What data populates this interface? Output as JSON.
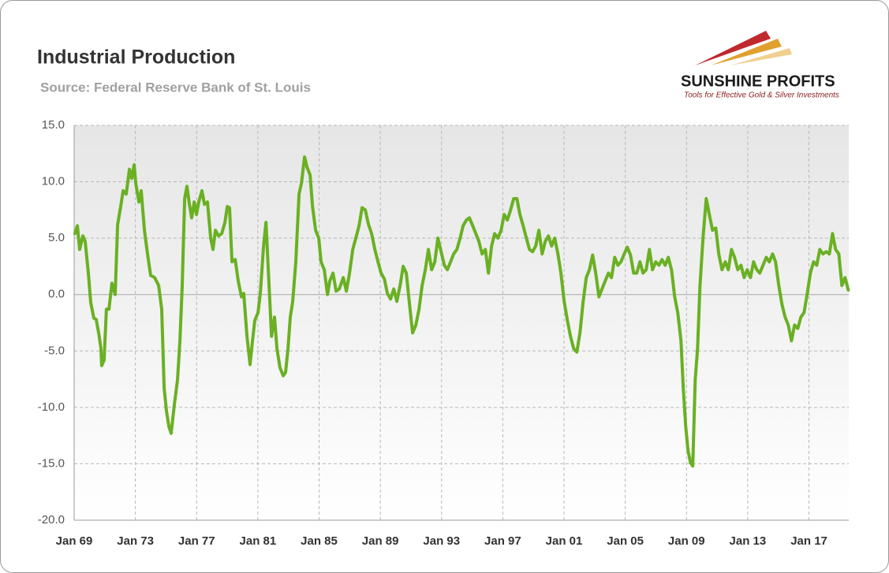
{
  "chart_data": {
    "type": "line",
    "title": "Industrial Production",
    "subtitle": "Source: Federal Reserve Bank of St. Louis",
    "color": "#6ab023",
    "grid": true,
    "xlim": [
      1969,
      2019.6
    ],
    "ylim": [
      -20,
      15
    ],
    "xticks": [
      {
        "value": 1969,
        "label": "Jan 69"
      },
      {
        "value": 1973,
        "label": "Jan 73"
      },
      {
        "value": 1977,
        "label": "Jan 77"
      },
      {
        "value": 1981,
        "label": "Jan 81"
      },
      {
        "value": 1985,
        "label": "Jan 85"
      },
      {
        "value": 1989,
        "label": "Jan 89"
      },
      {
        "value": 1993,
        "label": "Jan 93"
      },
      {
        "value": 1997,
        "label": "Jan 97"
      },
      {
        "value": 2001,
        "label": "Jan 01"
      },
      {
        "value": 2005,
        "label": "Jan 05"
      },
      {
        "value": 2009,
        "label": "Jan 09"
      },
      {
        "value": 2013,
        "label": "Jan 13"
      },
      {
        "value": 2017,
        "label": "Jan 17"
      }
    ],
    "yticks": [
      {
        "value": 15,
        "label": "15.0"
      },
      {
        "value": 10,
        "label": "10.0"
      },
      {
        "value": 5,
        "label": "5.0"
      },
      {
        "value": 0,
        "label": "0.0"
      },
      {
        "value": -5,
        "label": "-5.0"
      },
      {
        "value": -10,
        "label": "-10.0"
      },
      {
        "value": -15,
        "label": "-15.0"
      },
      {
        "value": -20,
        "label": "-20.0"
      }
    ],
    "x": [
      1969.05,
      1969.21,
      1969.36,
      1969.57,
      1969.72,
      1969.93,
      1970.08,
      1970.29,
      1970.44,
      1970.6,
      1970.75,
      1970.8,
      1970.96,
      1971.11,
      1971.27,
      1971.47,
      1971.68,
      1971.84,
      1972.04,
      1972.2,
      1972.4,
      1972.61,
      1972.76,
      1972.92,
      1973.02,
      1973.23,
      1973.38,
      1973.59,
      1973.79,
      1974.0,
      1974.26,
      1974.52,
      1974.72,
      1974.88,
      1975.03,
      1975.19,
      1975.34,
      1975.55,
      1975.75,
      1975.91,
      1976.06,
      1976.22,
      1976.37,
      1976.53,
      1976.68,
      1976.84,
      1976.99,
      1977.14,
      1977.35,
      1977.51,
      1977.71,
      1977.92,
      1978.07,
      1978.23,
      1978.43,
      1978.64,
      1978.85,
      1979.0,
      1979.15,
      1979.31,
      1979.52,
      1979.72,
      1979.93,
      1980.08,
      1980.29,
      1980.49,
      1980.65,
      1980.8,
      1981.01,
      1981.16,
      1981.37,
      1981.53,
      1981.73,
      1981.89,
      1982.09,
      1982.25,
      1982.45,
      1982.66,
      1982.81,
      1982.97,
      1983.12,
      1983.28,
      1983.48,
      1983.69,
      1983.85,
      1984.05,
      1984.21,
      1984.41,
      1984.57,
      1984.77,
      1984.98,
      1985.13,
      1985.34,
      1985.55,
      1985.7,
      1985.91,
      1986.11,
      1986.32,
      1986.58,
      1986.78,
      1986.99,
      1987.2,
      1987.4,
      1987.61,
      1987.81,
      1988.02,
      1988.23,
      1988.43,
      1988.64,
      1988.85,
      1989.05,
      1989.26,
      1989.46,
      1989.67,
      1989.88,
      1990.08,
      1990.29,
      1990.49,
      1990.7,
      1990.91,
      1991.11,
      1991.32,
      1991.53,
      1991.73,
      1991.94,
      1992.14,
      1992.35,
      1992.56,
      1992.76,
      1992.97,
      1993.18,
      1993.38,
      1993.59,
      1993.79,
      1994.0,
      1994.21,
      1994.41,
      1994.62,
      1994.82,
      1995.03,
      1995.24,
      1995.44,
      1995.65,
      1995.86,
      1996.06,
      1996.27,
      1996.47,
      1996.68,
      1996.89,
      1997.09,
      1997.3,
      1997.51,
      1997.71,
      1997.92,
      1998.12,
      1998.33,
      1998.54,
      1998.74,
      1998.95,
      1999.15,
      1999.36,
      1999.57,
      1999.77,
      1999.98,
      2000.19,
      2000.39,
      2000.6,
      2000.8,
      2001.01,
      2001.22,
      2001.42,
      2001.63,
      2001.84,
      2002.04,
      2002.25,
      2002.45,
      2002.66,
      2002.87,
      2003.07,
      2003.28,
      2003.48,
      2003.69,
      2003.9,
      2004.1,
      2004.31,
      2004.52,
      2004.72,
      2004.93,
      2005.13,
      2005.34,
      2005.55,
      2005.75,
      2005.96,
      2006.16,
      2006.37,
      2006.58,
      2006.78,
      2006.99,
      2007.2,
      2007.4,
      2007.61,
      2007.81,
      2008.02,
      2008.23,
      2008.43,
      2008.64,
      2008.79,
      2008.95,
      2009.1,
      2009.26,
      2009.41,
      2009.57,
      2009.72,
      2009.88,
      2010.08,
      2010.29,
      2010.49,
      2010.7,
      2010.91,
      2011.11,
      2011.32,
      2011.53,
      2011.73,
      2011.94,
      2012.14,
      2012.35,
      2012.56,
      2012.76,
      2012.97,
      2013.18,
      2013.38,
      2013.59,
      2013.79,
      2014.0,
      2014.21,
      2014.41,
      2014.62,
      2014.82,
      2015.03,
      2015.24,
      2015.44,
      2015.65,
      2015.86,
      2016.06,
      2016.27,
      2016.47,
      2016.68,
      2016.89,
      2017.09,
      2017.3,
      2017.51,
      2017.71,
      2017.92,
      2018.12,
      2018.33,
      2018.54,
      2018.74,
      2018.95,
      2019.15,
      2019.36,
      2019.57
    ],
    "values": [
      5.4,
      6.1,
      4.0,
      5.2,
      4.7,
      1.9,
      -0.7,
      -2.1,
      -2.2,
      -3.4,
      -4.8,
      -6.3,
      -5.8,
      -1.3,
      -1.3,
      1.0,
      0,
      6.2,
      7.8,
      9.2,
      8.9,
      11.1,
      10.3,
      11.5,
      9.9,
      8.2,
      9.2,
      5.7,
      3.6,
      1.7,
      1.5,
      0.8,
      -1.3,
      -8.3,
      -10.3,
      -11.7,
      -12.3,
      -9.7,
      -7.6,
      -4.1,
      0.8,
      8.5,
      9.6,
      8.0,
      6.8,
      8.2,
      7.1,
      8.2,
      9.2,
      8.0,
      8.2,
      5.0,
      4.0,
      5.7,
      5.2,
      5.4,
      6.4,
      7.8,
      7.7,
      2.9,
      3.1,
      1.2,
      -0.2,
      0.1,
      -3.7,
      -6.2,
      -4.1,
      -2.3,
      -1.6,
      0.1,
      4.3,
      6.4,
      0.8,
      -3.7,
      -2.0,
      -4.8,
      -6.5,
      -7.2,
      -6.9,
      -4.8,
      -2.0,
      -0.6,
      2.9,
      8.9,
      9.9,
      12.2,
      11.3,
      10.6,
      7.8,
      5.7,
      5.0,
      2.9,
      2.2,
      0,
      1.2,
      1.9,
      0.3,
      0.5,
      1.5,
      0.3,
      1.9,
      4.0,
      5.0,
      6.1,
      7.7,
      7.5,
      6.2,
      5.4,
      4.0,
      2.9,
      1.9,
      1.4,
      0.1,
      -0.4,
      0.5,
      -0.6,
      0.8,
      2.5,
      1.9,
      -0.9,
      -3.4,
      -2.7,
      -1.3,
      0.8,
      2.2,
      4.0,
      2.2,
      2.9,
      5.0,
      3.8,
      2.6,
      2.2,
      2.9,
      3.6,
      4.0,
      5.0,
      6.1,
      6.6,
      6.8,
      6.1,
      5.4,
      4.7,
      3.6,
      4.0,
      1.9,
      4.3,
      5.4,
      5.0,
      5.7,
      7.1,
      6.6,
      7.5,
      8.5,
      8.5,
      7.1,
      6.1,
      5.0,
      4.0,
      3.8,
      4.3,
      5.7,
      3.6,
      4.7,
      5.2,
      4.3,
      5.0,
      3.6,
      1.9,
      -0.6,
      -2.3,
      -3.7,
      -4.8,
      -5.1,
      -3.4,
      -0.6,
      1.5,
      2.2,
      3.5,
      1.9,
      -0.2,
      0.5,
      1.2,
      1.9,
      1.5,
      3.3,
      2.6,
      2.9,
      3.6,
      4.2,
      3.5,
      1.9,
      1.9,
      2.9,
      1.9,
      2.2,
      4.0,
      2.2,
      2.9,
      2.6,
      3.1,
      2.6,
      3.3,
      2.2,
      -0.2,
      -1.6,
      -4.1,
      -8.3,
      -11.7,
      -13.8,
      -14.9,
      -15.2,
      -7.6,
      -4.8,
      0.8,
      5.0,
      8.5,
      7.1,
      5.7,
      5.9,
      3.6,
      2.2,
      2.9,
      2.2,
      4.0,
      3.3,
      2.2,
      2.6,
      1.5,
      2.2,
      1.5,
      2.9,
      2.2,
      1.9,
      2.6,
      3.3,
      2.9,
      3.6,
      2.9,
      0.8,
      -0.9,
      -2.0,
      -2.7,
      -4.1,
      -2.7,
      -3.0,
      -2.0,
      -1.6,
      0.1,
      1.9,
      2.9,
      2.6,
      4.0,
      3.6,
      3.8,
      3.6,
      5.4,
      4.0,
      3.6,
      0.8,
      1.5,
      0.4
    ]
  },
  "logo": {
    "name": "SUNSHINE PROFITS",
    "tagline": "Tools for Effective Gold & Silver Investments"
  }
}
